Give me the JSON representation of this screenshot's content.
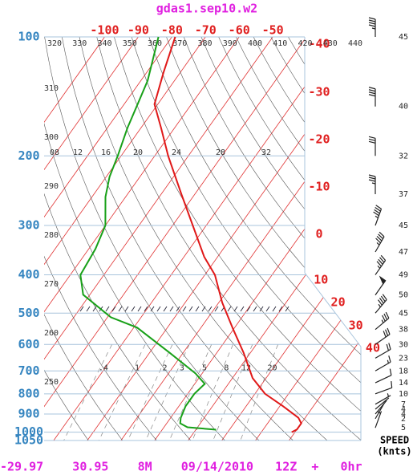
{
  "title": "gdas1.sep10.w2",
  "footer": "-29.97    30.95    8M    09/14/2010   12Z  +   0hr",
  "chart_data": {
    "type": "skewt",
    "yscale": "log",
    "ylim": [
      1050,
      100
    ],
    "yticks": [
      100,
      200,
      300,
      400,
      500,
      600,
      700,
      800,
      900,
      1000,
      1050
    ],
    "xlim": [
      -118,
      -40.5
    ],
    "xticks": [
      -100,
      -90,
      -80,
      -70,
      -60,
      -50,
      -40,
      -30,
      -20,
      -10,
      0,
      10,
      20,
      30,
      40
    ],
    "isotherm_color": "#e03030",
    "isobar_color": "#a8c4dc",
    "dry_adiabats": [
      250,
      260,
      270,
      280,
      290,
      300,
      310,
      320,
      330,
      340,
      350,
      360,
      370,
      380,
      390,
      400,
      410,
      420,
      430,
      440
    ],
    "mixing_ratios": [
      {
        "value": 0.4,
        "label": ".4"
      },
      1,
      2,
      3,
      5,
      8,
      12,
      20
    ],
    "upper_labels": [
      "08",
      "12",
      "16",
      "20",
      "24",
      "28",
      "32"
    ],
    "series": [
      {
        "color": "#e01818",
        "p": [
          100,
          123,
          148,
          170,
          200,
          250,
          300,
          360,
          400,
          470,
          550,
          630,
          730,
          800,
          860,
          920,
          950,
          985,
          1000
        ],
        "t": [
          -79,
          -75,
          -71,
          -64,
          -56,
          -44,
          -34,
          -24,
          -17,
          -9,
          0,
          8,
          16,
          23,
          31,
          38,
          40,
          40,
          39
        ]
      },
      {
        "color": "#18a018",
        "p": [
          100,
          129,
          148,
          170,
          200,
          226,
          254,
          300,
          344,
          400,
          449,
          512,
          544,
          630,
          710,
          755,
          800,
          860,
          920,
          950,
          972,
          986
        ],
        "t": [
          -84,
          -78,
          -76,
          -74,
          -71,
          -69,
          -66,
          -60,
          -58,
          -57,
          -52,
          -39,
          -29,
          -14,
          -2,
          3,
          2,
          2,
          3,
          4,
          7,
          16
        ]
      }
    ],
    "wind": {
      "label": "SPEED",
      "unit": "(knts)",
      "p": [
        100,
        150,
        200,
        250,
        300,
        350,
        400,
        450,
        500,
        550,
        600,
        650,
        700,
        750,
        800,
        850,
        875,
        900,
        925,
        975
      ],
      "speed": [
        45,
        40,
        32,
        37,
        45,
        47,
        49,
        50,
        45,
        38,
        30,
        23,
        18,
        14,
        10,
        7,
        4,
        4,
        2,
        5
      ],
      "direction": [
        0,
        0,
        0,
        0,
        20,
        30,
        35,
        35,
        40,
        50,
        55,
        60,
        60,
        65,
        70,
        60,
        50,
        40,
        30,
        20
      ]
    }
  }
}
